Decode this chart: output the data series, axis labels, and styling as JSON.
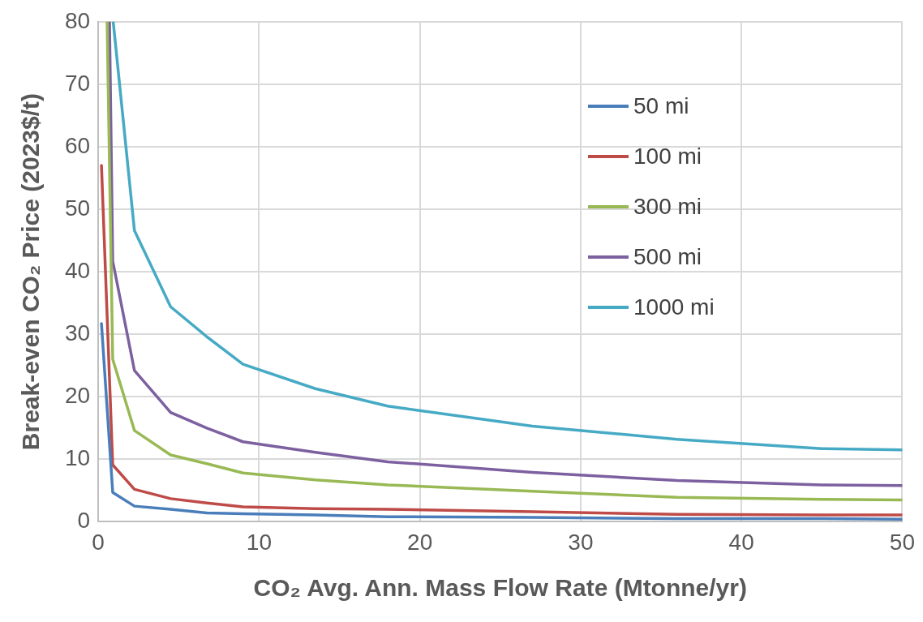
{
  "chart_data": {
    "type": "line",
    "xlabel": "CO₂ Avg. Ann. Mass Flow Rate (Mtonne/yr)",
    "ylabel": "Break-even CO₂ Price (2023$/t)",
    "xlim": [
      0,
      50
    ],
    "xticks": [
      0,
      10,
      20,
      30,
      40,
      50
    ],
    "ylim": [
      0,
      80
    ],
    "yticks": [
      0,
      10,
      20,
      30,
      40,
      50,
      60,
      70,
      80
    ],
    "grid": true,
    "legend": "top right",
    "marker": "none",
    "line_style": "solid",
    "series": [
      {
        "name": "50 mi",
        "color": "#4a7ebb",
        "x": [
          0.2,
          0.9,
          2.25,
          4.5,
          6.75,
          9,
          13.5,
          18,
          27,
          36,
          45,
          50
        ],
        "values": [
          31.7,
          4.7,
          2.5,
          2.0,
          1.4,
          1.3,
          1.1,
          0.8,
          0.7,
          0.5,
          0.5,
          0.4
        ]
      },
      {
        "name": "100 mi",
        "color": "#be4b48",
        "x": [
          0.2,
          0.9,
          2.25,
          4.5,
          6.75,
          9,
          13.5,
          18,
          27,
          36,
          45,
          50
        ],
        "values": [
          57,
          9.1,
          5.2,
          3.7,
          3.0,
          2.4,
          2.1,
          2.0,
          1.6,
          1.2,
          1.1,
          1.1
        ]
      },
      {
        "name": "300 mi",
        "color": "#98b954",
        "x": [
          0.55,
          0.9,
          2.25,
          4.5,
          6.75,
          9,
          13.5,
          18,
          27,
          36,
          45,
          50
        ],
        "values": [
          80,
          26,
          14.6,
          10.7,
          9.3,
          7.8,
          6.7,
          5.9,
          4.9,
          3.9,
          3.6,
          3.5
        ]
      },
      {
        "name": "500 mi",
        "color": "#7d60a0",
        "x": [
          0.7,
          0.9,
          2.25,
          4.5,
          6.75,
          9,
          13.5,
          18,
          27,
          36,
          45,
          50
        ],
        "values": [
          80,
          41.7,
          24.2,
          17.5,
          15,
          12.8,
          11.1,
          9.6,
          7.9,
          6.6,
          5.9,
          5.8
        ]
      },
      {
        "name": "1000 mi",
        "color": "#46aac5",
        "x": [
          0.93,
          2.25,
          4.5,
          6.75,
          9,
          13.5,
          18,
          27,
          36,
          45,
          50
        ],
        "values": [
          80,
          46.6,
          34.4,
          29.6,
          25.2,
          21.3,
          18.5,
          15.3,
          13.2,
          11.7,
          11.5
        ]
      }
    ]
  }
}
